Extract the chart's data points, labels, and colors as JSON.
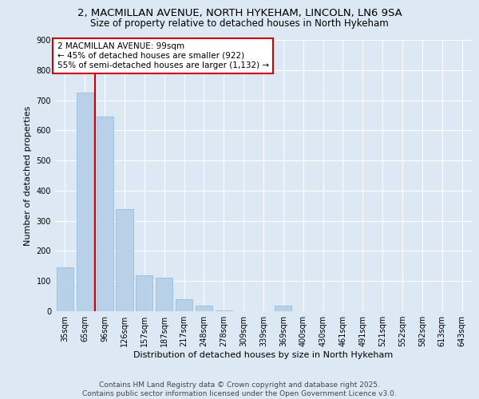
{
  "title_line1": "2, MACMILLAN AVENUE, NORTH HYKEHAM, LINCOLN, LN6 9SA",
  "title_line2": "Size of property relative to detached houses in North Hykeham",
  "xlabel": "Distribution of detached houses by size in North Hykeham",
  "ylabel": "Number of detached properties",
  "categories": [
    "35sqm",
    "65sqm",
    "96sqm",
    "126sqm",
    "157sqm",
    "187sqm",
    "217sqm",
    "248sqm",
    "278sqm",
    "309sqm",
    "339sqm",
    "369sqm",
    "400sqm",
    "430sqm",
    "461sqm",
    "491sqm",
    "521sqm",
    "552sqm",
    "582sqm",
    "613sqm",
    "643sqm"
  ],
  "values": [
    145,
    725,
    645,
    340,
    120,
    110,
    40,
    18,
    2,
    0,
    0,
    18,
    0,
    0,
    0,
    0,
    0,
    0,
    0,
    0,
    0
  ],
  "bar_color": "#b8d0e8",
  "bar_edge_color": "#8fb8d8",
  "vline_color": "#cc0000",
  "annotation_line1": "2 MACMILLAN AVENUE: 99sqm",
  "annotation_line2": "← 45% of detached houses are smaller (922)",
  "annotation_line3": "55% of semi-detached houses are larger (1,132) →",
  "annotation_box_color": "#ffffff",
  "annotation_box_edge": "#cc0000",
  "ylim": [
    0,
    900
  ],
  "yticks": [
    0,
    100,
    200,
    300,
    400,
    500,
    600,
    700,
    800,
    900
  ],
  "bg_color": "#dce9f5",
  "footer_line1": "Contains HM Land Registry data © Crown copyright and database right 2025.",
  "footer_line2": "Contains public sector information licensed under the Open Government Licence v3.0.",
  "title_fontsize": 9.5,
  "subtitle_fontsize": 8.5,
  "axis_label_fontsize": 8,
  "tick_fontsize": 7,
  "annotation_fontsize": 7.5,
  "footer_fontsize": 6.5
}
